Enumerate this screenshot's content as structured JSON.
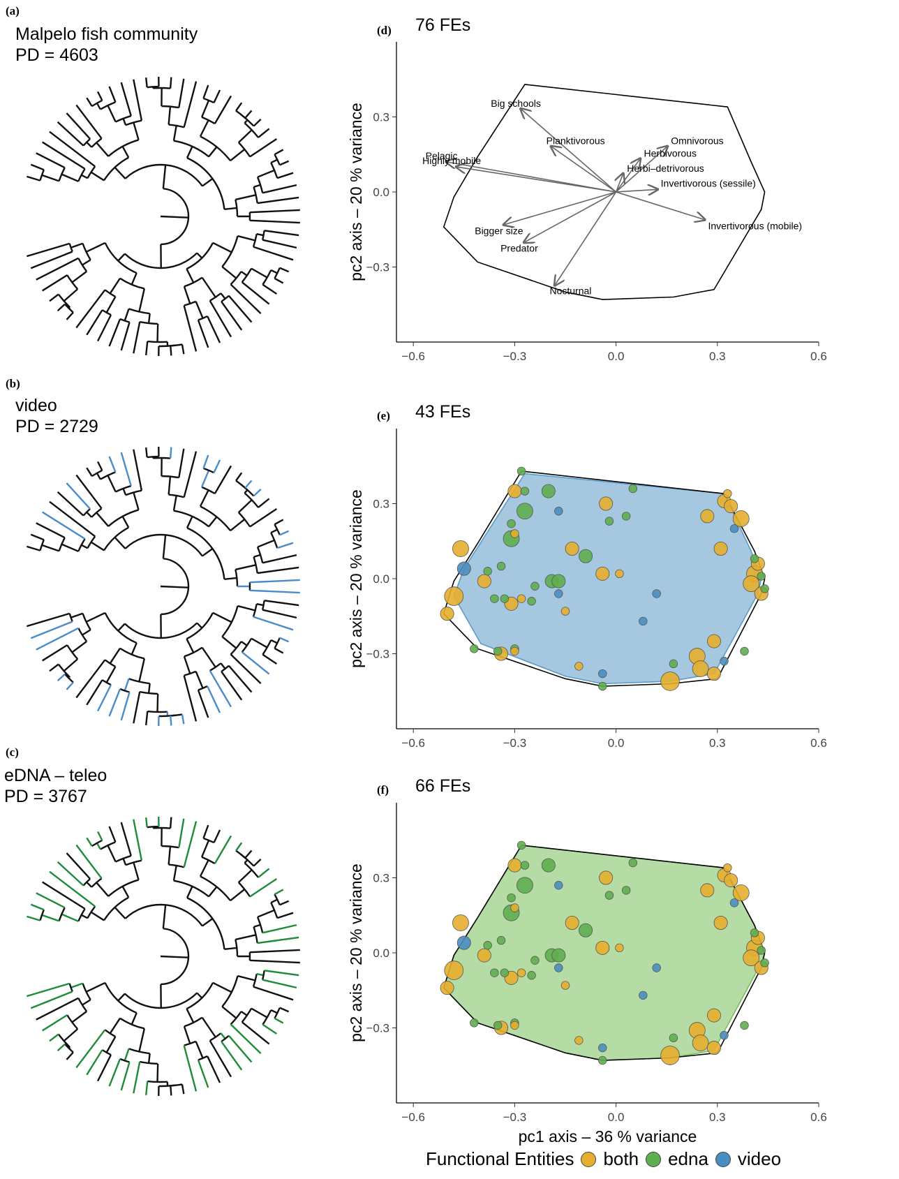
{
  "colors": {
    "both": "#E6AE2E",
    "edna": "#5FAE4F",
    "video": "#4A8EC1",
    "video_hull": "#5B9BC7",
    "edna_hull": "#78C05A",
    "tree_black": "#111111",
    "tree_video": "#4A8BC9",
    "tree_edna": "#1E8B3A",
    "arrow": "#666666"
  },
  "panels": {
    "a": {
      "letter": "(a)",
      "title": "Malpelo fish community",
      "pd": "PD = 4603"
    },
    "b": {
      "letter": "(b)",
      "title": "video",
      "pd": "PD = 2729"
    },
    "c": {
      "letter": "(c)",
      "title": "eDNA – teleo",
      "pd": "PD = 3767"
    },
    "d": {
      "letter": "(d)",
      "title": "76 FEs"
    },
    "e": {
      "letter": "(e)",
      "title": "43 FEs"
    },
    "f": {
      "letter": "(f)",
      "title": "66 FEs"
    }
  },
  "legend": {
    "title": "Functional Entities",
    "items": [
      "both",
      "edna",
      "video"
    ]
  },
  "chart_data": [
    {
      "panel": "d",
      "type": "scatter",
      "title": "76 FEs",
      "xlabel": "",
      "ylabel": "pc2 axis –  20 % variance",
      "xlim": [
        -0.65,
        0.6
      ],
      "ylim": [
        -0.6,
        0.6
      ],
      "xticks": [
        -0.6,
        -0.3,
        0.0,
        0.3,
        0.6
      ],
      "xtick_labels": [
        "−0.6",
        "−0.3",
        "0.0",
        "0.3",
        "0.6"
      ],
      "yticks": [
        -0.3,
        0.0,
        0.3
      ],
      "ytick_labels": [
        "−0.3",
        "0.0",
        "0.3"
      ],
      "hull": [
        [
          -0.27,
          0.43
        ],
        [
          0.33,
          0.34
        ],
        [
          0.4,
          0.12
        ],
        [
          0.44,
          0.0
        ],
        [
          0.43,
          -0.07
        ],
        [
          0.29,
          -0.39
        ],
        [
          0.17,
          -0.42
        ],
        [
          -0.04,
          -0.43
        ],
        [
          -0.15,
          -0.4
        ],
        [
          -0.41,
          -0.28
        ],
        [
          -0.51,
          -0.14
        ],
        [
          -0.48,
          -0.02
        ],
        [
          -0.41,
          0.14
        ]
      ],
      "vectors": [
        {
          "label": "Big schools",
          "x": -0.28,
          "y": 0.33
        },
        {
          "label": "Planktivorous",
          "x": -0.19,
          "y": 0.18
        },
        {
          "label": "Omnivorous",
          "x": 0.15,
          "y": 0.18
        },
        {
          "label": "Herbivorous",
          "x": 0.07,
          "y": 0.13
        },
        {
          "label": "Pelagic",
          "x": -0.5,
          "y": 0.12
        },
        {
          "label": "Highly mobile",
          "x": -0.47,
          "y": 0.1
        },
        {
          "label": "Herbi–detrivorous",
          "x": 0.02,
          "y": 0.07
        },
        {
          "label": "Invertivorous (sessile)",
          "x": 0.12,
          "y": 0.01
        },
        {
          "label": "Invertivorous (mobile)",
          "x": 0.26,
          "y": -0.11
        },
        {
          "label": "Bigger size",
          "x": -0.33,
          "y": -0.13
        },
        {
          "label": "Predator",
          "x": -0.27,
          "y": -0.2
        },
        {
          "label": "Nocturnal",
          "x": -0.18,
          "y": -0.37
        }
      ]
    },
    {
      "panel": "e",
      "type": "scatter",
      "title": "43 FEs",
      "xlabel": "",
      "ylabel": "pc2 axis –  20 % variance",
      "xlim": [
        -0.65,
        0.6
      ],
      "ylim": [
        -0.6,
        0.6
      ],
      "xticks": [
        -0.6,
        -0.3,
        0.0,
        0.3,
        0.6
      ],
      "xtick_labels": [
        "−0.6",
        "−0.3",
        "0.0",
        "0.3",
        "0.6"
      ],
      "yticks": [
        -0.3,
        0.0,
        0.3
      ],
      "ytick_labels": [
        "−0.3",
        "0.0",
        "0.3"
      ],
      "hull_fill_series": "video",
      "outline": [
        [
          -0.28,
          0.43
        ],
        [
          0.32,
          0.34
        ],
        [
          0.41,
          0.11
        ],
        [
          0.44,
          0.0
        ],
        [
          0.43,
          -0.06
        ],
        [
          0.3,
          -0.4
        ],
        [
          0.16,
          -0.42
        ],
        [
          -0.04,
          -0.43
        ],
        [
          -0.15,
          -0.4
        ],
        [
          -0.41,
          -0.28
        ],
        [
          -0.51,
          -0.14
        ],
        [
          -0.48,
          -0.01
        ],
        [
          -0.41,
          0.14
        ]
      ],
      "fill_hull": [
        [
          -0.27,
          0.42
        ],
        [
          0.32,
          0.34
        ],
        [
          0.4,
          0.11
        ],
        [
          0.43,
          0.0
        ],
        [
          0.42,
          -0.06
        ],
        [
          0.29,
          -0.38
        ],
        [
          0.16,
          -0.41
        ],
        [
          -0.04,
          -0.42
        ],
        [
          -0.15,
          -0.39
        ],
        [
          -0.4,
          -0.26
        ],
        [
          -0.48,
          -0.07
        ],
        [
          -0.45,
          0.04
        ]
      ],
      "points": [
        {
          "x": -0.28,
          "y": 0.43,
          "s": 2,
          "g": "edna"
        },
        {
          "x": -0.3,
          "y": 0.35,
          "s": 4,
          "g": "both"
        },
        {
          "x": -0.27,
          "y": 0.35,
          "s": 2,
          "g": "edna"
        },
        {
          "x": -0.2,
          "y": 0.35,
          "s": 4,
          "g": "edna"
        },
        {
          "x": -0.27,
          "y": 0.27,
          "s": 5,
          "g": "edna"
        },
        {
          "x": -0.17,
          "y": 0.27,
          "s": 2,
          "g": "video"
        },
        {
          "x": -0.03,
          "y": 0.3,
          "s": 4,
          "g": "both"
        },
        {
          "x": 0.05,
          "y": 0.36,
          "s": 2,
          "g": "edna"
        },
        {
          "x": 0.32,
          "y": 0.31,
          "s": 4,
          "g": "both"
        },
        {
          "x": 0.33,
          "y": 0.34,
          "s": 2,
          "g": "both"
        },
        {
          "x": 0.34,
          "y": 0.29,
          "s": 4,
          "g": "both"
        },
        {
          "x": 0.37,
          "y": 0.24,
          "s": 5,
          "g": "both"
        },
        {
          "x": 0.27,
          "y": 0.25,
          "s": 4,
          "g": "both"
        },
        {
          "x": 0.35,
          "y": 0.2,
          "s": 2,
          "g": "video"
        },
        {
          "x": -0.02,
          "y": 0.23,
          "s": 2,
          "g": "edna"
        },
        {
          "x": 0.03,
          "y": 0.25,
          "s": 2,
          "g": "edna"
        },
        {
          "x": -0.31,
          "y": 0.22,
          "s": 2,
          "g": "edna"
        },
        {
          "x": -0.31,
          "y": 0.16,
          "s": 5,
          "g": "edna"
        },
        {
          "x": -0.3,
          "y": 0.18,
          "s": 2,
          "g": "both"
        },
        {
          "x": 0.31,
          "y": 0.12,
          "s": 4,
          "g": "both"
        },
        {
          "x": -0.13,
          "y": 0.12,
          "s": 4,
          "g": "both"
        },
        {
          "x": -0.09,
          "y": 0.09,
          "s": 4,
          "g": "edna"
        },
        {
          "x": -0.46,
          "y": 0.12,
          "s": 5,
          "g": "both"
        },
        {
          "x": -0.45,
          "y": 0.04,
          "s": 4,
          "g": "video"
        },
        {
          "x": -0.34,
          "y": 0.05,
          "s": 2,
          "g": "edna"
        },
        {
          "x": -0.38,
          "y": 0.03,
          "s": 2,
          "g": "edna"
        },
        {
          "x": -0.04,
          "y": 0.02,
          "s": 4,
          "g": "both"
        },
        {
          "x": 0.01,
          "y": 0.02,
          "s": 2,
          "g": "both"
        },
        {
          "x": 0.41,
          "y": 0.08,
          "s": 2,
          "g": "edna"
        },
        {
          "x": 0.42,
          "y": 0.06,
          "s": 4,
          "g": "both"
        },
        {
          "x": 0.41,
          "y": 0.02,
          "s": 5,
          "g": "both"
        },
        {
          "x": 0.43,
          "y": 0.01,
          "s": 2,
          "g": "edna"
        },
        {
          "x": 0.4,
          "y": -0.02,
          "s": 5,
          "g": "both"
        },
        {
          "x": 0.44,
          "y": -0.04,
          "s": 2,
          "g": "edna"
        },
        {
          "x": 0.43,
          "y": -0.06,
          "s": 4,
          "g": "both"
        },
        {
          "x": -0.39,
          "y": -0.01,
          "s": 4,
          "g": "both"
        },
        {
          "x": -0.19,
          "y": -0.01,
          "s": 4,
          "g": "edna"
        },
        {
          "x": -0.17,
          "y": -0.01,
          "s": 4,
          "g": "edna"
        },
        {
          "x": -0.24,
          "y": -0.03,
          "s": 2,
          "g": "edna"
        },
        {
          "x": -0.17,
          "y": -0.06,
          "s": 2,
          "g": "video"
        },
        {
          "x": 0.12,
          "y": -0.06,
          "s": 2,
          "g": "video"
        },
        {
          "x": -0.48,
          "y": -0.07,
          "s": 6,
          "g": "both"
        },
        {
          "x": -0.36,
          "y": -0.08,
          "s": 2,
          "g": "edna"
        },
        {
          "x": -0.33,
          "y": -0.08,
          "s": 2,
          "g": "edna"
        },
        {
          "x": -0.25,
          "y": -0.09,
          "s": 2,
          "g": "edna"
        },
        {
          "x": -0.31,
          "y": -0.1,
          "s": 4,
          "g": "both"
        },
        {
          "x": -0.28,
          "y": -0.08,
          "s": 2,
          "g": "both"
        },
        {
          "x": -0.15,
          "y": -0.13,
          "s": 2,
          "g": "both"
        },
        {
          "x": 0.08,
          "y": -0.17,
          "s": 2,
          "g": "video"
        },
        {
          "x": -0.5,
          "y": -0.14,
          "s": 4,
          "g": "both"
        },
        {
          "x": 0.29,
          "y": -0.25,
          "s": 4,
          "g": "both"
        },
        {
          "x": -0.42,
          "y": -0.28,
          "s": 2,
          "g": "edna"
        },
        {
          "x": -0.3,
          "y": -0.28,
          "s": 2,
          "g": "edna"
        },
        {
          "x": -0.3,
          "y": -0.29,
          "s": 2,
          "g": "both"
        },
        {
          "x": -0.34,
          "y": -0.3,
          "s": 4,
          "g": "both"
        },
        {
          "x": -0.35,
          "y": -0.29,
          "s": 2,
          "g": "edna"
        },
        {
          "x": 0.38,
          "y": -0.29,
          "s": 2,
          "g": "edna"
        },
        {
          "x": 0.24,
          "y": -0.31,
          "s": 5,
          "g": "both"
        },
        {
          "x": 0.25,
          "y": -0.36,
          "s": 5,
          "g": "both"
        },
        {
          "x": 0.17,
          "y": -0.34,
          "s": 2,
          "g": "edna"
        },
        {
          "x": -0.11,
          "y": -0.35,
          "s": 2,
          "g": "both"
        },
        {
          "x": -0.04,
          "y": -0.38,
          "s": 2,
          "g": "video"
        },
        {
          "x": 0.29,
          "y": -0.38,
          "s": 4,
          "g": "both"
        },
        {
          "x": 0.16,
          "y": -0.41,
          "s": 6,
          "g": "both"
        },
        {
          "x": -0.04,
          "y": -0.43,
          "s": 2,
          "g": "edna"
        },
        {
          "x": 0.32,
          "y": -0.33,
          "s": 2,
          "g": "video"
        }
      ]
    },
    {
      "panel": "f",
      "type": "scatter",
      "title": "66 FEs",
      "xlabel": "pc1 axis –  36 % variance",
      "ylabel": "pc2 axis –  20 % variance",
      "xlim": [
        -0.65,
        0.6
      ],
      "ylim": [
        -0.6,
        0.6
      ],
      "xticks": [
        -0.6,
        -0.3,
        0.0,
        0.3,
        0.6
      ],
      "xtick_labels": [
        "−0.6",
        "−0.3",
        "0.0",
        "0.3",
        "0.6"
      ],
      "yticks": [
        -0.3,
        0.0,
        0.3
      ],
      "ytick_labels": [
        "−0.3",
        "0.0",
        "0.3"
      ],
      "hull_fill_series": "edna",
      "outline": [
        [
          -0.28,
          0.43
        ],
        [
          0.32,
          0.34
        ],
        [
          0.41,
          0.11
        ],
        [
          0.44,
          0.0
        ],
        [
          0.43,
          -0.06
        ],
        [
          0.3,
          -0.4
        ],
        [
          0.16,
          -0.42
        ],
        [
          -0.04,
          -0.43
        ],
        [
          -0.15,
          -0.4
        ],
        [
          -0.41,
          -0.28
        ],
        [
          -0.51,
          -0.14
        ],
        [
          -0.48,
          -0.01
        ],
        [
          -0.41,
          0.14
        ]
      ],
      "fill_hull": [
        [
          -0.28,
          0.43
        ],
        [
          0.32,
          0.34
        ],
        [
          0.41,
          0.11
        ],
        [
          0.44,
          0.0
        ],
        [
          0.43,
          -0.04
        ],
        [
          0.29,
          -0.39
        ],
        [
          0.16,
          -0.42
        ],
        [
          -0.04,
          -0.43
        ],
        [
          -0.15,
          -0.4
        ],
        [
          -0.41,
          -0.28
        ],
        [
          -0.51,
          -0.14
        ],
        [
          -0.48,
          -0.01
        ],
        [
          -0.41,
          0.14
        ]
      ],
      "points": "same_as_e"
    }
  ]
}
